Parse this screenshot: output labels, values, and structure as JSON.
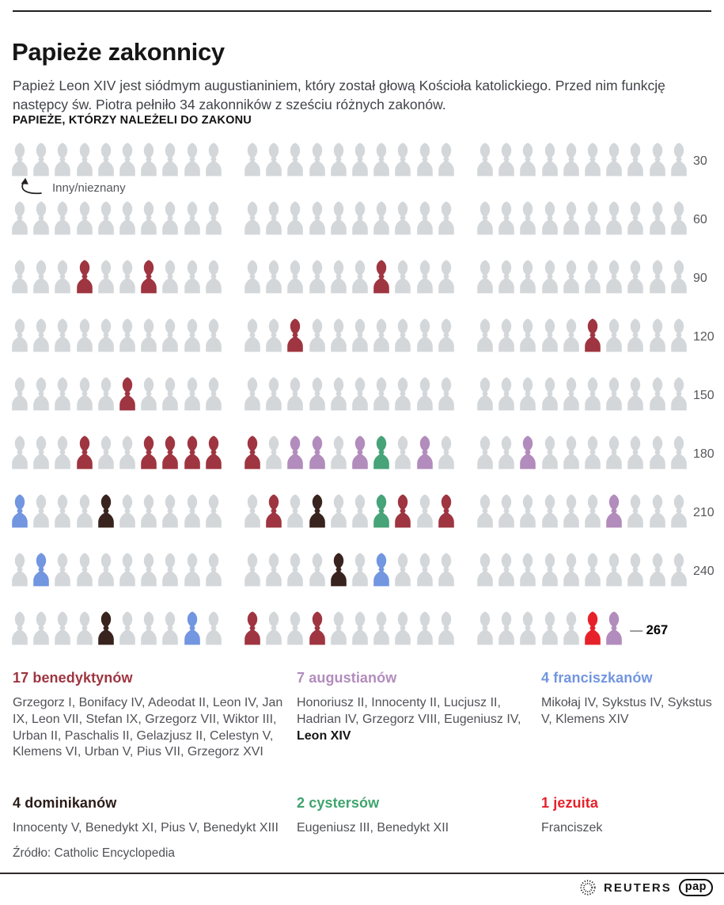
{
  "header": {
    "title": "Papieże zakonnicy",
    "subtitle": "Papież Leon XIV jest siódmym augustianiniem, który został głową Kościoła katolickiego. Przed nim funkcję następcy św. Piotra pełniło 34 zakonników z sześciu różnych zakonów."
  },
  "chart_data": {
    "type": "pictogram",
    "section_title": "PAPIEŻE, KTÓRZY NALEŻELI DO ZAKONU",
    "annotation": "Inny/nieznany",
    "total_popes": 267,
    "default_color": "#d4d7da",
    "orders": {
      "benedyktyni": "#9e3540",
      "augustianie": "#b28cbc",
      "franciszkanie": "#7296e0",
      "dominikanie": "#38231e",
      "cystersi": "#47a378",
      "jezuici": "#e62129"
    },
    "rows": [
      {
        "label": "30",
        "count": 30,
        "colored": {}
      },
      {
        "label": "60",
        "count": 30,
        "colored": {}
      },
      {
        "label": "90",
        "count": 30,
        "colored": {
          "4": "benedyktyni",
          "7": "benedyktyni",
          "17": "benedyktyni"
        }
      },
      {
        "label": "120",
        "count": 30,
        "colored": {
          "13": "benedyktyni",
          "26": "benedyktyni"
        }
      },
      {
        "label": "150",
        "count": 30,
        "colored": {
          "6": "benedyktyni"
        }
      },
      {
        "label": "180",
        "count": 30,
        "colored": {
          "4": "benedyktyni",
          "7": "benedyktyni",
          "8": "benedyktyni",
          "9": "benedyktyni",
          "10": "benedyktyni",
          "11": "benedyktyni",
          "13": "augustianie",
          "14": "augustianie",
          "16": "augustianie",
          "17": "cystersi",
          "19": "augustianie",
          "23": "augustianie"
        }
      },
      {
        "label": "210",
        "count": 30,
        "colored": {
          "1": "franciszkanie",
          "5": "dominikanie",
          "12": "benedyktyni",
          "14": "dominikanie",
          "17": "cystersi",
          "18": "benedyktyni",
          "20": "benedyktyni",
          "27": "augustianie"
        }
      },
      {
        "label": "240",
        "count": 30,
        "colored": {
          "2": "franciszkanie",
          "15": "dominikanie",
          "17": "franciszkanie"
        }
      },
      {
        "label": "267",
        "count": 27,
        "end_dash": true,
        "colored": {
          "5": "dominikanie",
          "9": "franciszkanie",
          "11": "benedyktyni",
          "14": "benedyktyni",
          "26": "jezuici",
          "27": "augustianie"
        }
      }
    ]
  },
  "legend": [
    {
      "count": "17",
      "name": "benedyktynów",
      "color": "#9e3540",
      "members": "Grzegorz I, Bonifacy IV, Adeodat II, Leon IV, Jan IX, Leon VII, Stefan IX, Grzegorz VII, Wiktor III, Urban II, Paschalis II, Gelazjusz II, Celestyn V, Klemens VI, Urban V, Pius VII, Grzegorz XVI",
      "bold_member": ""
    },
    {
      "count": "7",
      "name": "augustianów",
      "color": "#b28cbc",
      "members": "Honoriusz II, Innocenty II, Lucjusz II, Hadrian IV, Grzegorz VIII, Eugeniusz IV,",
      "bold_member": "Leon XIV"
    },
    {
      "count": "4",
      "name": "franciszkanów",
      "color": "#7296e0",
      "members": "Mikołaj IV, Sykstus IV, Sykstus V, Klemens XIV",
      "bold_member": ""
    },
    {
      "count": "4",
      "name": "dominikanów",
      "color": "#2a1c18",
      "members": "Innocenty V, Benedykt XI, Pius V, Benedykt XIII",
      "bold_member": ""
    },
    {
      "count": "2",
      "name": "cystersów",
      "color": "#3fa46e",
      "members": "Eugeniusz III, Benedykt XII",
      "bold_member": ""
    },
    {
      "count": "1",
      "name": "jezuita",
      "color": "#e62129",
      "members": "Franciszek",
      "bold_member": ""
    }
  ],
  "source": "Źródło: Catholic Encyclopedia",
  "footer": {
    "reuters": "REUTERS",
    "pap": "pap"
  }
}
